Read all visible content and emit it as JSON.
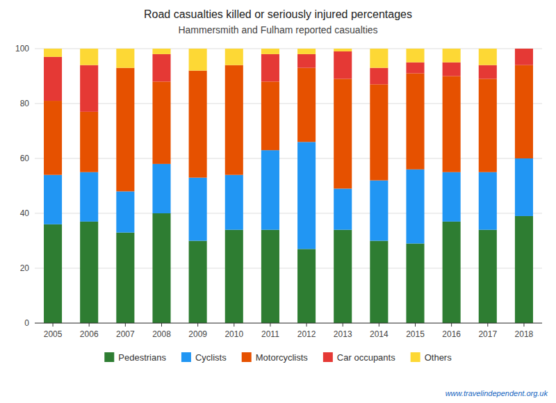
{
  "chart_data": {
    "type": "bar",
    "stacked": true,
    "title": "Road casualties killed or seriously injured percentages",
    "subtitle": "Hammersmith and Fulham reported casualties",
    "categories": [
      "2005",
      "2006",
      "2007",
      "2008",
      "2009",
      "2010",
      "2011",
      "2012",
      "2013",
      "2014",
      "2015",
      "2016",
      "2017",
      "2018"
    ],
    "series": [
      {
        "name": "Pedestrians",
        "color": "#2e7d32",
        "values": [
          36,
          37,
          33,
          40,
          30,
          34,
          34,
          27,
          34,
          30,
          29,
          37,
          34,
          39
        ]
      },
      {
        "name": "Cyclists",
        "color": "#2196f3",
        "values": [
          18,
          18,
          15,
          18,
          23,
          20,
          29,
          39,
          15,
          22,
          27,
          18,
          21,
          21
        ]
      },
      {
        "name": "Motorcyclists",
        "color": "#e65100",
        "values": [
          27,
          22,
          45,
          30,
          39,
          40,
          25,
          27,
          40,
          35,
          35,
          35,
          34,
          34
        ]
      },
      {
        "name": "Car occupants",
        "color": "#e53935",
        "values": [
          16,
          17,
          0,
          10,
          0,
          0,
          10,
          5,
          10,
          6,
          4,
          5,
          5,
          6
        ]
      },
      {
        "name": "Others",
        "color": "#fdd835",
        "values": [
          3,
          6,
          7,
          2,
          8,
          6,
          2,
          2,
          1,
          7,
          5,
          5,
          6,
          0
        ]
      }
    ],
    "ylim": [
      0,
      100
    ],
    "yticks": [
      0,
      20,
      40,
      60,
      80,
      100
    ],
    "grid": true,
    "legend": "bottom",
    "annotations": [
      {
        "text": "www.travelindependent.org.uk"
      }
    ]
  }
}
